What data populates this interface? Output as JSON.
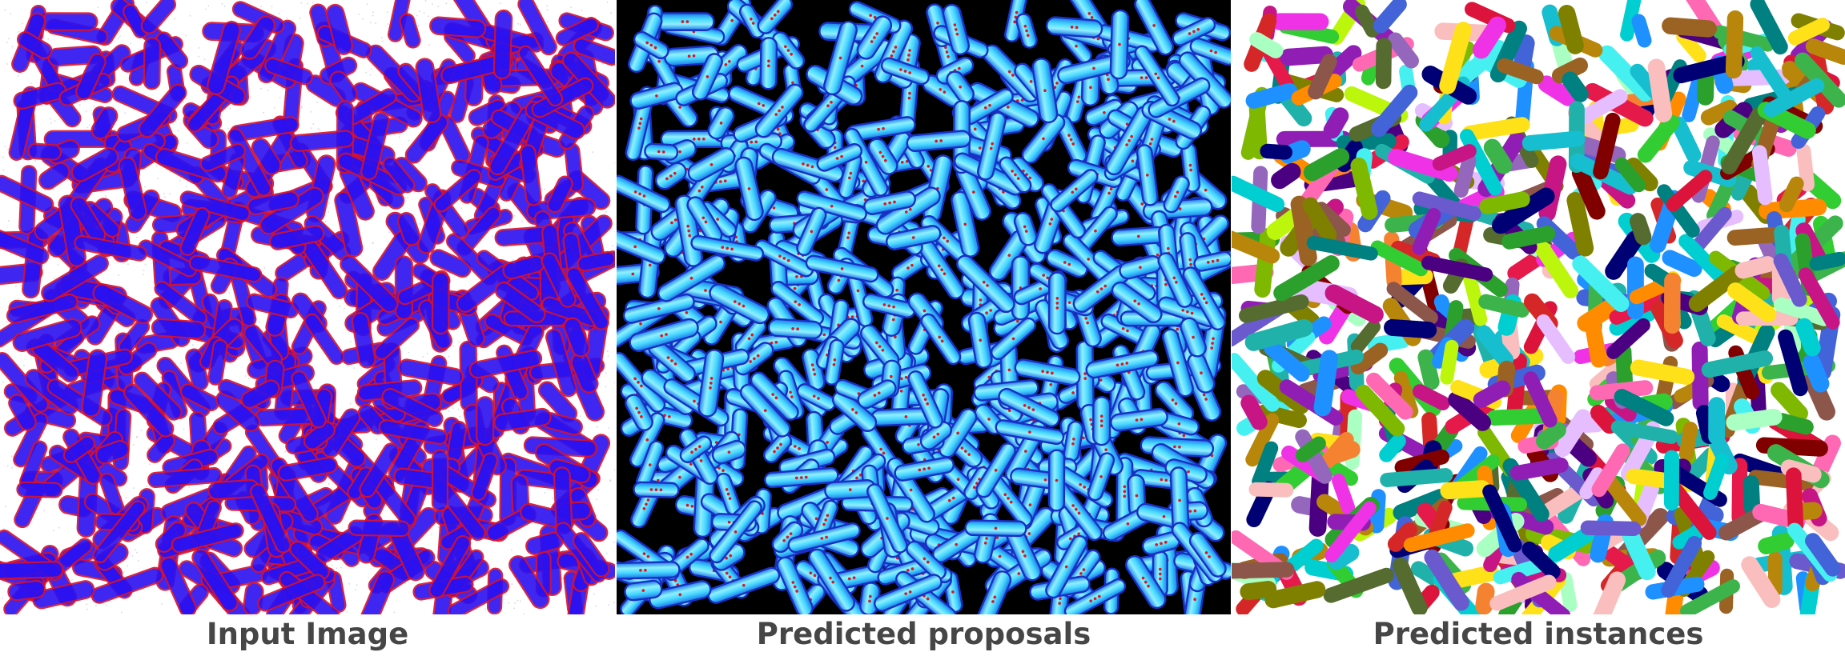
{
  "panels": [
    {
      "id": "input",
      "caption": "Input Image",
      "background": "#ffffff",
      "cell_body": "#2b10f0",
      "cell_edge": "#d8102a",
      "noise": "#b8b8c8"
    },
    {
      "id": "proposals",
      "caption": "Predicted proposals",
      "background": "#000000",
      "cell_body": "#46d6ff",
      "cell_edge": "#1a2fc4",
      "seed_dot": "#e0141c"
    },
    {
      "id": "instances",
      "caption": "Predicted instances",
      "background": "#ffffff",
      "palette": [
        "#e6194b",
        "#3cb44b",
        "#ffe119",
        "#4363d8",
        "#f58231",
        "#911eb4",
        "#46f0f0",
        "#f032e6",
        "#bcf60c",
        "#fabebe",
        "#008080",
        "#e6beff",
        "#9a6324",
        "#800000",
        "#aaffc3",
        "#808000",
        "#000075",
        "#2ca02c",
        "#17becf",
        "#d62728",
        "#9467bd",
        "#8c564b",
        "#7fb800",
        "#ff69b4",
        "#20b2aa",
        "#b8860b",
        "#4b0082",
        "#00ced1",
        "#ff8c00",
        "#6a5acd",
        "#32cd32",
        "#c71585",
        "#1e90ff",
        "#556b2f",
        "#dc143c"
      ]
    }
  ]
}
